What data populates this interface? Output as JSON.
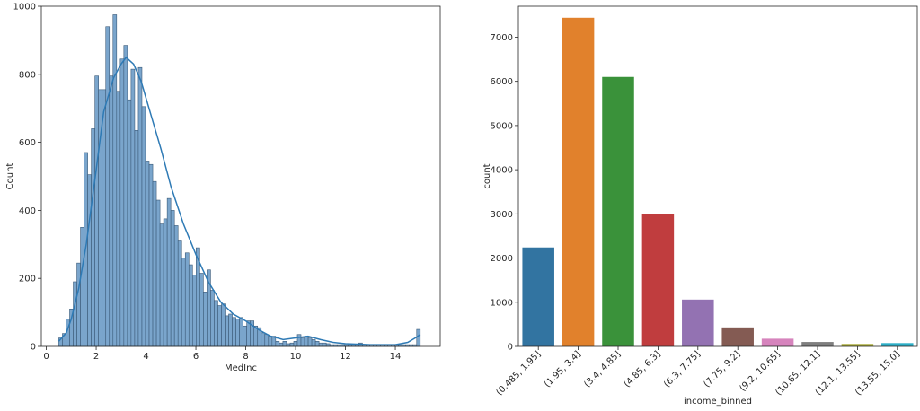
{
  "chart_data": [
    {
      "type": "bar",
      "subtype": "histogram",
      "xlabel": "MedInc",
      "ylabel": "Count",
      "xlim": [
        -0.2,
        15.8
      ],
      "ylim": [
        0,
        1000
      ],
      "xticks": [
        0,
        2,
        4,
        6,
        8,
        10,
        12,
        14
      ],
      "yticks": [
        0,
        200,
        400,
        600,
        800,
        1000
      ],
      "bin_start": 0.4999,
      "bin_width": 0.145,
      "values": [
        25,
        38,
        80,
        110,
        190,
        245,
        350,
        570,
        505,
        640,
        795,
        755,
        755,
        940,
        795,
        975,
        750,
        845,
        885,
        725,
        815,
        635,
        820,
        705,
        545,
        535,
        485,
        430,
        360,
        375,
        435,
        400,
        355,
        310,
        260,
        275,
        240,
        210,
        290,
        215,
        160,
        225,
        165,
        135,
        120,
        125,
        90,
        95,
        85,
        80,
        85,
        60,
        75,
        75,
        60,
        55,
        40,
        35,
        30,
        30,
        15,
        10,
        15,
        8,
        10,
        15,
        35,
        25,
        30,
        25,
        20,
        15,
        10,
        10,
        8,
        5,
        5,
        5,
        5,
        5,
        5,
        5,
        5,
        10,
        5,
        5,
        5,
        5,
        5,
        5,
        5,
        5,
        5,
        5,
        5,
        5,
        5,
        5,
        5,
        50
      ],
      "kde": [
        [
          0.5,
          15
        ],
        [
          0.8,
          40
        ],
        [
          1.0,
          80
        ],
        [
          1.3,
          170
        ],
        [
          1.6,
          300
        ],
        [
          2.0,
          520
        ],
        [
          2.3,
          690
        ],
        [
          2.7,
          790
        ],
        [
          3.0,
          830
        ],
        [
          3.2,
          850
        ],
        [
          3.5,
          830
        ],
        [
          3.8,
          780
        ],
        [
          4.2,
          680
        ],
        [
          4.6,
          580
        ],
        [
          5.0,
          470
        ],
        [
          5.5,
          360
        ],
        [
          6.0,
          270
        ],
        [
          6.5,
          190
        ],
        [
          7.0,
          130
        ],
        [
          7.5,
          95
        ],
        [
          8.0,
          75
        ],
        [
          8.5,
          50
        ],
        [
          9.0,
          30
        ],
        [
          9.5,
          20
        ],
        [
          10.0,
          25
        ],
        [
          10.5,
          30
        ],
        [
          11.0,
          20
        ],
        [
          11.5,
          12
        ],
        [
          12.0,
          8
        ],
        [
          13.0,
          5
        ],
        [
          14.0,
          5
        ],
        [
          14.5,
          12
        ],
        [
          14.8,
          25
        ],
        [
          15.0,
          35
        ]
      ],
      "colors": {
        "bar": "#7aa5cc",
        "edge": "#3b5a78",
        "kde": "#2e7ab5"
      }
    },
    {
      "type": "bar",
      "xlabel": "income_binned",
      "ylabel": "count",
      "ylim": [
        0,
        7700
      ],
      "yticks": [
        0,
        1000,
        2000,
        3000,
        4000,
        5000,
        6000,
        7000
      ],
      "categories": [
        "(0.485, 1.95]",
        "(1.95, 3.4]",
        "(3.4, 4.85]",
        "(4.85, 6.3]",
        "(6.3, 7.75]",
        "(7.75, 9.2]",
        "(9.2, 10.65]",
        "(10.65, 12.1]",
        "(12.1, 13.55]",
        "(13.55, 15.0]"
      ],
      "values": [
        2240,
        7440,
        6100,
        3000,
        1060,
        430,
        175,
        100,
        55,
        75
      ],
      "colors": [
        "#3274a1",
        "#e1812c",
        "#3a923a",
        "#c03d3e",
        "#9372b2",
        "#845b53",
        "#d684bd",
        "#7f7f7f",
        "#a9aa35",
        "#2eb0c8"
      ]
    }
  ]
}
